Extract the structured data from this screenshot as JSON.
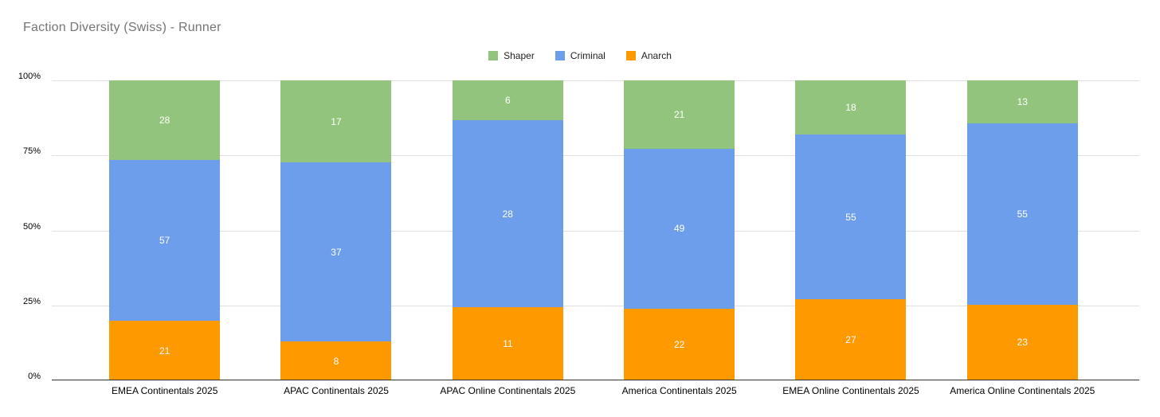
{
  "chart_data": {
    "type": "bar",
    "variant": "stacked-100-percent",
    "title": "Faction Diversity (Swiss) - Runner",
    "categories": [
      "EMEA Continentals 2025",
      "APAC Continentals 2025",
      "APAC Online Continentals 2025",
      "America Continentals 2025",
      "EMEA Online Continentals 2025",
      "America Online Continentals 2025"
    ],
    "series": [
      {
        "name": "Shaper",
        "color": "#93c47d",
        "values": [
          28,
          17,
          6,
          21,
          18,
          13
        ]
      },
      {
        "name": "Criminal",
        "color": "#6d9eeb",
        "values": [
          57,
          37,
          28,
          49,
          55,
          55
        ]
      },
      {
        "name": "Anarch",
        "color": "#ff9900",
        "values": [
          21,
          8,
          11,
          22,
          27,
          23
        ]
      }
    ],
    "stack_order_bottom_to_top": [
      "Anarch",
      "Criminal",
      "Shaper"
    ],
    "y_axis": {
      "ticks": [
        "0%",
        "25%",
        "50%",
        "75%",
        "100%"
      ],
      "min": 0,
      "max": 100,
      "format": "percent"
    },
    "legend_position": "top-center",
    "grid": true,
    "colors": {
      "title": "#757575",
      "axis_label": "#000000",
      "value_label": "#ffffff",
      "gridline": "#e0e0e0",
      "baseline": "#333333",
      "background": "#ffffff"
    }
  }
}
